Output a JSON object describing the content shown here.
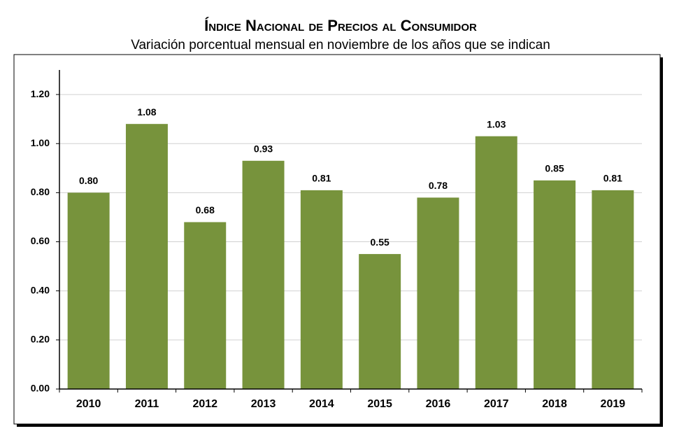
{
  "chart_data": {
    "type": "bar",
    "title": "Índice Nacional de Precios al Consumidor",
    "subtitle": "Variación porcentual mensual en noviembre de los años que se indican",
    "categories": [
      "2010",
      "2011",
      "2012",
      "2013",
      "2014",
      "2015",
      "2016",
      "2017",
      "2018",
      "2019"
    ],
    "values": [
      0.8,
      1.08,
      0.68,
      0.93,
      0.81,
      0.55,
      0.78,
      1.03,
      0.85,
      0.81
    ],
    "value_labels": [
      "0.80",
      "1.08",
      "0.68",
      "0.93",
      "0.81",
      "0.55",
      "0.78",
      "1.03",
      "0.85",
      "0.81"
    ],
    "color": "#77933c",
    "ylim": [
      0,
      1.3
    ],
    "yticks": [
      {
        "value": 0,
        "label": "0.00"
      },
      {
        "value": 0.2,
        "label": "0.20"
      },
      {
        "value": 0.4,
        "label": "0.40"
      },
      {
        "value": 0.6,
        "label": "0.60"
      },
      {
        "value": 0.8,
        "label": "0.80"
      },
      {
        "value": 1.0,
        "label": "1.00"
      },
      {
        "value": 1.2,
        "label": "1.20"
      }
    ],
    "grid": true
  }
}
